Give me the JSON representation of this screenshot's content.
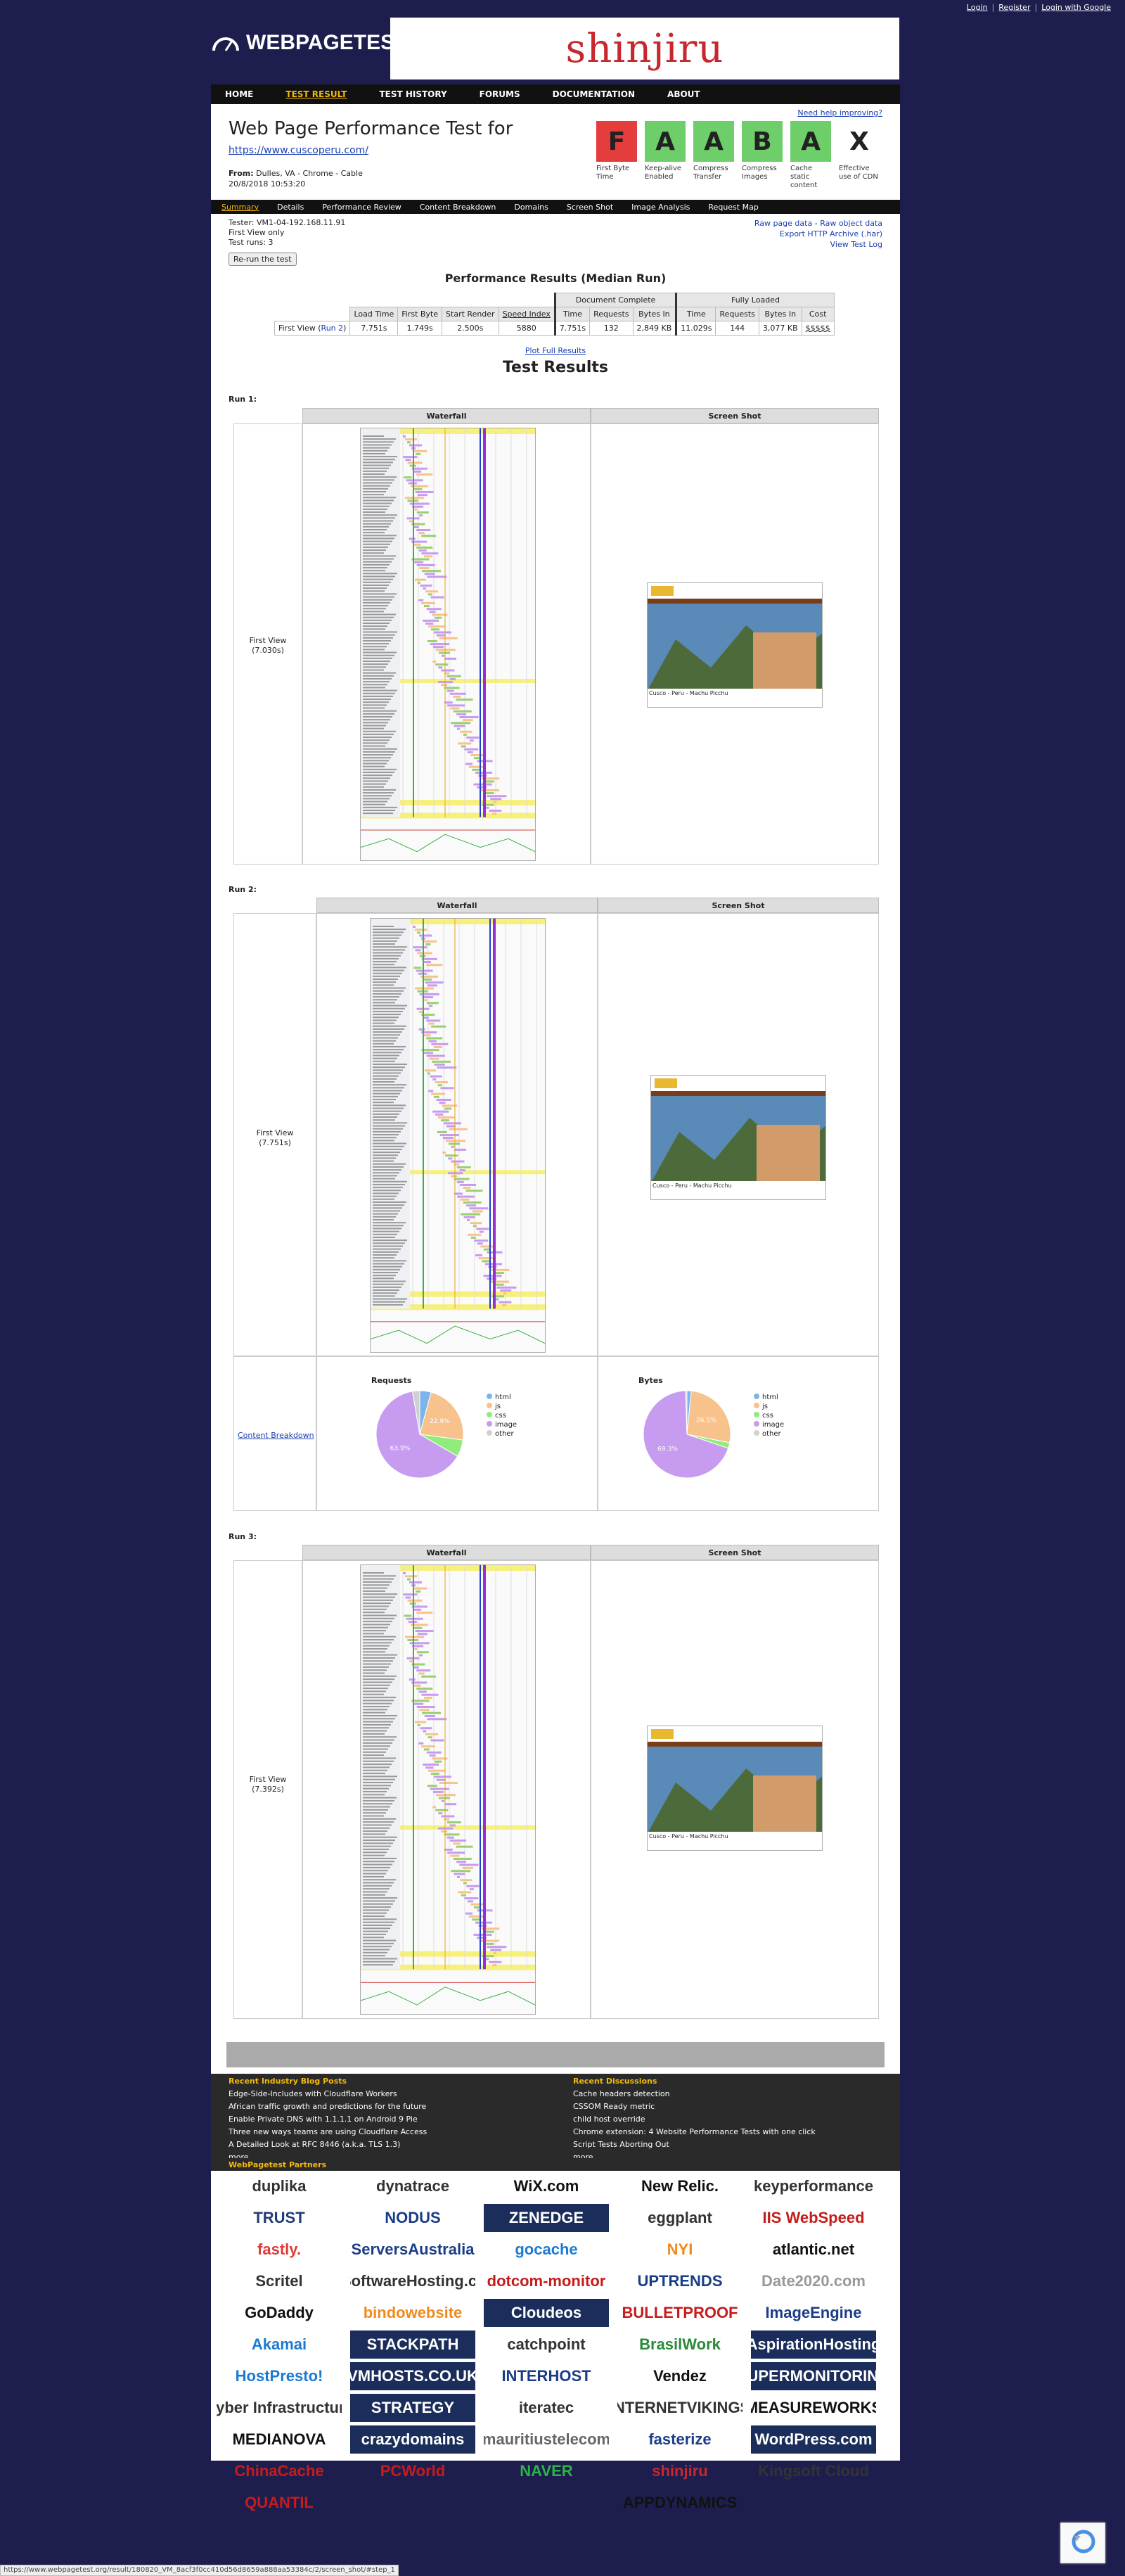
{
  "topbar": {
    "login": "Login",
    "register": "Register",
    "google": "Login with Google",
    "sep": "|"
  },
  "logo": {
    "text": "WEBPAGETEST"
  },
  "ad": {
    "brand": "shinjiru"
  },
  "nav": [
    "HOME",
    "TEST RESULT",
    "TEST HISTORY",
    "FORUMS",
    "DOCUMENTATION",
    "ABOUT"
  ],
  "header": {
    "title": "Web Page Performance Test for",
    "url": "https://www.cuscoperu.com/",
    "from_label": "From:",
    "from_value": "Dulles, VA - Chrome - Cable",
    "date": "20/8/2018 10:53:20",
    "help": "Need help improving?"
  },
  "grades": [
    {
      "grade": "F",
      "label": "First Byte Time",
      "color": "#e53c3c"
    },
    {
      "grade": "A",
      "label": "Keep-alive Enabled",
      "color": "#6ecf6a"
    },
    {
      "grade": "A",
      "label": "Compress Transfer",
      "color": "#6ecf6a"
    },
    {
      "grade": "B",
      "label": "Compress Images",
      "color": "#6ecf6a"
    },
    {
      "grade": "A",
      "label": "Cache static content",
      "color": "#6ecf6a"
    },
    {
      "grade": "X",
      "label": "Effective use of CDN",
      "color": "#ffffff"
    }
  ],
  "subnav": [
    "Summary",
    "Details",
    "Performance Review",
    "Content Breakdown",
    "Domains",
    "Screen Shot",
    "Image Analysis",
    "Request Map"
  ],
  "summary": {
    "tester": "Tester: VM1-04-192.168.11.91",
    "view": "First View only",
    "runs": "Test runs: 3",
    "rerun": "Re-run the test",
    "raw_page": "Raw page data",
    "raw_object": "Raw object data",
    "har": "Export HTTP Archive (.har)",
    "log": "View Test Log",
    "dash": "-"
  },
  "perf": {
    "title": "Performance Results (Median Run)",
    "group_doc": "Document Complete",
    "group_full": "Fully Loaded",
    "columns": [
      "Load Time",
      "First Byte",
      "Start Render",
      "Speed Index",
      "Time",
      "Requests",
      "Bytes In",
      "Time",
      "Requests",
      "Bytes In",
      "Cost"
    ],
    "row_label": "First View (",
    "row_link": "Run 2",
    "row_close": ")",
    "row": [
      "7.751s",
      "1.749s",
      "2.500s",
      "5880",
      "7.751s",
      "132",
      "2,849 KB",
      "11.029s",
      "144",
      "3,077 KB",
      "$$$$$"
    ],
    "plot_full": "Plot Full Results"
  },
  "test_results_title": "Test Results",
  "runs": [
    {
      "label": "Run 1:",
      "fv": "First View",
      "time": "(7.030s)"
    },
    {
      "label": "Run 2:",
      "fv": "First View",
      "time": "(7.751s)"
    },
    {
      "label": "Run 3:",
      "fv": "First View",
      "time": "(7.392s)"
    }
  ],
  "col_heads": {
    "waterfall": "Waterfall",
    "screenshot": "Screen Shot"
  },
  "breakdown": {
    "link": "Content Breakdown",
    "requests_title": "Requests",
    "bytes_title": "Bytes",
    "req_slices": [
      {
        "label": "html",
        "pct": 4.2,
        "color": "#7cb5ec"
      },
      {
        "label": "js",
        "pct": 22.9,
        "color": "#f7c28c"
      },
      {
        "label": "css",
        "pct": 6.3,
        "color": "#90ed7d"
      },
      {
        "label": "image",
        "pct": 63.9,
        "color": "#c69bf0"
      },
      {
        "label": "other",
        "pct": 2.7,
        "color": "#d0d0d0"
      }
    ],
    "bytes_slices": [
      {
        "label": "html",
        "pct": 1.6,
        "color": "#7cb5ec"
      },
      {
        "label": "js",
        "pct": 26.5,
        "color": "#f7c28c"
      },
      {
        "label": "css",
        "pct": 2.1,
        "color": "#90ed7d"
      },
      {
        "label": "image",
        "pct": 69.3,
        "color": "#c69bf0"
      },
      {
        "label": "other",
        "pct": 0.5,
        "color": "#d0d0d0"
      }
    ],
    "req_pie_text": [
      "22.9%",
      "63.9%"
    ],
    "bytes_pie_text": [
      "26.5%",
      "69.3%"
    ]
  },
  "screenshot_caption": "Cusco - Peru - Machu Picchu",
  "blog": {
    "title": "Recent Industry Blog Posts",
    "items": [
      "Edge-Side-Includes with Cloudflare Workers",
      "African traffic growth and predictions for the future",
      "Enable Private DNS with 1.1.1.1 on Android 9 Pie",
      "Three new ways teams are using Cloudflare Access",
      "A Detailed Look at RFC 8446 (a.k.a. TLS 1.3)",
      "more..."
    ]
  },
  "discussions": {
    "title": "Recent Discussions",
    "items": [
      "Cache headers detection",
      "CSSOM Ready metric",
      "child host override",
      "Chrome extension: 4 Website Performance Tests with one click",
      "Script Tests Aborting Out",
      "more..."
    ]
  },
  "partners": {
    "title": "WebPagetest Partners",
    "logos": [
      {
        "name": "duplika",
        "color": "#333"
      },
      {
        "name": "dynatrace",
        "color": "#333"
      },
      {
        "name": "WiX.com",
        "color": "#111"
      },
      {
        "name": "New Relic.",
        "color": "#111"
      },
      {
        "name": "keyperformance",
        "color": "#333"
      },
      {
        "name": "TRUST",
        "color": "#233a7a"
      },
      {
        "name": "NODUS",
        "color": "#1b3d88"
      },
      {
        "name": "ZENEDGE",
        "color": "#fff"
      },
      {
        "name": "eggplant",
        "color": "#333"
      },
      {
        "name": "IIS WebSpeed",
        "color": "#c51c1c"
      },
      {
        "name": "fastly.",
        "color": "#e03a35"
      },
      {
        "name": "ServersAustralia",
        "color": "#1b3d88"
      },
      {
        "name": "gocache",
        "color": "#1b7ad3"
      },
      {
        "name": "NYI",
        "color": "#f08a1d"
      },
      {
        "name": "atlantic.net",
        "color": "#111"
      },
      {
        "name": "Scritel",
        "color": "#333"
      },
      {
        "name": "SoftwareHosting.cz",
        "color": "#333"
      },
      {
        "name": "dotcom-monitor",
        "color": "#c51c1c"
      },
      {
        "name": "UPTRENDS",
        "color": "#1b3d88"
      },
      {
        "name": "Date2020.com",
        "color": "#999"
      },
      {
        "name": "GoDaddy",
        "color": "#111"
      },
      {
        "name": "bindowebsite",
        "color": "#f08a1d"
      },
      {
        "name": "Cloudeos",
        "color": "#fff"
      },
      {
        "name": "BULLETPROOF",
        "color": "#c51c1c"
      },
      {
        "name": "ImageEngine",
        "color": "#1b3d88"
      },
      {
        "name": "Akamai",
        "color": "#1b7ad3"
      },
      {
        "name": "STACKPATH",
        "color": "#fff"
      },
      {
        "name": "catchpoint",
        "color": "#333"
      },
      {
        "name": "BrasilWork",
        "color": "#2a8a3a"
      },
      {
        "name": "AspirationHosting",
        "color": "#fff"
      },
      {
        "name": "HostPresto!",
        "color": "#1b7ad3"
      },
      {
        "name": "VMHOSTS.CO.UK",
        "color": "#fff"
      },
      {
        "name": "INTERHOST",
        "color": "#1b3d88"
      },
      {
        "name": "Vendez",
        "color": "#111"
      },
      {
        "name": "SUPERMONITORING",
        "color": "#fff"
      },
      {
        "name": "Cyber Infrastructure",
        "color": "#333"
      },
      {
        "name": "STRATEGY",
        "color": "#fff"
      },
      {
        "name": "iteratec",
        "color": "#333"
      },
      {
        "name": "INTERNETVIKINGS",
        "color": "#333"
      },
      {
        "name": "MEASUREWORKS",
        "color": "#111"
      },
      {
        "name": "MEDIANOVA",
        "color": "#111"
      },
      {
        "name": "crazydomains",
        "color": "#fff"
      },
      {
        "name": "mauritiustelecom",
        "color": "#666"
      },
      {
        "name": "fasterize",
        "color": "#1b3d88"
      },
      {
        "name": "WordPress.com",
        "color": "#fff"
      },
      {
        "name": "ChinaCache",
        "color": "#c51c1c"
      },
      {
        "name": "PCWorld",
        "color": "#c51c1c"
      },
      {
        "name": "NAVER",
        "color": "#2cb34a"
      },
      {
        "name": "shinjiru",
        "color": "#c7272d"
      },
      {
        "name": "Kingsoft Cloud",
        "color": "#333"
      },
      {
        "name": "QUANTIL",
        "color": "#c51c1c"
      },
      {
        "name": "",
        "color": "#333"
      },
      {
        "name": "",
        "color": "#333"
      },
      {
        "name": "APPDYNAMICS",
        "color": "#111"
      },
      {
        "name": "",
        "color": "#333"
      }
    ]
  },
  "statusbar": "https://www.webpagetest.org/result/180820_VM_8acf3f0cc410d56d8659a888aa53384c/2/screen_shot/#step_1"
}
